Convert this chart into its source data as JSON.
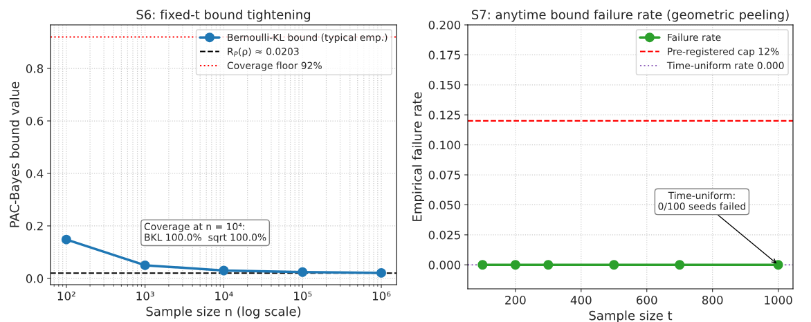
{
  "chart_data": [
    {
      "type": "line",
      "title": "S6: fixed-t bound tightening",
      "xlabel": "Sample size n (log scale)",
      "ylabel": "PAC-Bayes bound value",
      "x": [
        100,
        1000,
        10000,
        100000,
        1000000
      ],
      "series": [
        {
          "name": "Bernoulli-KL bound (typical emp.)",
          "color": "#1f77b4",
          "values": [
            0.148,
            0.05,
            0.03,
            0.024,
            0.021
          ]
        }
      ],
      "log": "x",
      "xlim": [
        63,
        1560000
      ],
      "ylim": [
        -0.024,
        0.966
      ],
      "xticks": [
        {
          "value": 100,
          "label": "10²"
        },
        {
          "value": 1000,
          "label": "10³"
        },
        {
          "value": 10000,
          "label": "10⁴"
        },
        {
          "value": 100000,
          "label": "10⁵"
        },
        {
          "value": 1000000,
          "label": "10⁶"
        }
      ],
      "yticks": [
        {
          "value": 0,
          "label": "0.0"
        },
        0.2,
        0.4,
        0.6,
        0.8
      ],
      "ref_lines": [
        {
          "axis": "y",
          "value": 0.0203,
          "label": "R$_{P}$(ρ) ≈ 0.0203",
          "color": "#000000",
          "line_style": "dashed"
        },
        {
          "axis": "y",
          "value": 0.92,
          "label": "Coverage floor 92%",
          "color": "#ff0000",
          "line_style": "dotted"
        }
      ],
      "annotations": [
        "Coverage at n = 10⁴:\nBKL 100.0%  sqrt 100.0%"
      ],
      "marker": "circle",
      "line_style": "solid",
      "grid": true,
      "legend": "top right"
    },
    {
      "type": "line",
      "title": "S7: anytime bound failure rate (geometric peeling)",
      "xlabel": "Sample size t",
      "ylabel": "Empirical failure rate",
      "x": [
        100,
        200,
        300,
        500,
        700,
        1000
      ],
      "series": [
        {
          "name": "Failure rate",
          "color": "#2ca02c",
          "values": [
            0,
            0,
            0,
            0,
            0,
            0
          ]
        }
      ],
      "xlim": [
        55,
        1045
      ],
      "ylim": [
        -0.02,
        0.2
      ],
      "xticks": [
        200,
        400,
        600,
        800,
        1000
      ],
      "yticks": [
        {
          "value": 0,
          "label": "0.000"
        },
        {
          "value": 0.025,
          "label": "0.025"
        },
        {
          "value": 0.05,
          "label": "0.050"
        },
        {
          "value": 0.075,
          "label": "0.075"
        },
        {
          "value": 0.1,
          "label": "0.100"
        },
        {
          "value": 0.125,
          "label": "0.125"
        },
        {
          "value": 0.15,
          "label": "0.150"
        },
        {
          "value": 0.175,
          "label": "0.175"
        },
        {
          "value": 0.2,
          "label": "0.200"
        }
      ],
      "ref_lines": [
        {
          "axis": "y",
          "value": 0.12,
          "label": "Pre-registered cap 12%",
          "color": "#ff0000",
          "line_style": "dashed"
        },
        {
          "axis": "y",
          "value": 0.0,
          "label": "Time-uniform rate 0.000",
          "color": "#9467bd",
          "line_style": "dotted"
        }
      ],
      "annotations": [
        {
          "text": "Time-uniform:\n0/100 seeds failed",
          "x": 1000,
          "y": 0
        }
      ],
      "marker": "circle",
      "line_style": "solid",
      "grid": true,
      "legend": "top right"
    }
  ]
}
